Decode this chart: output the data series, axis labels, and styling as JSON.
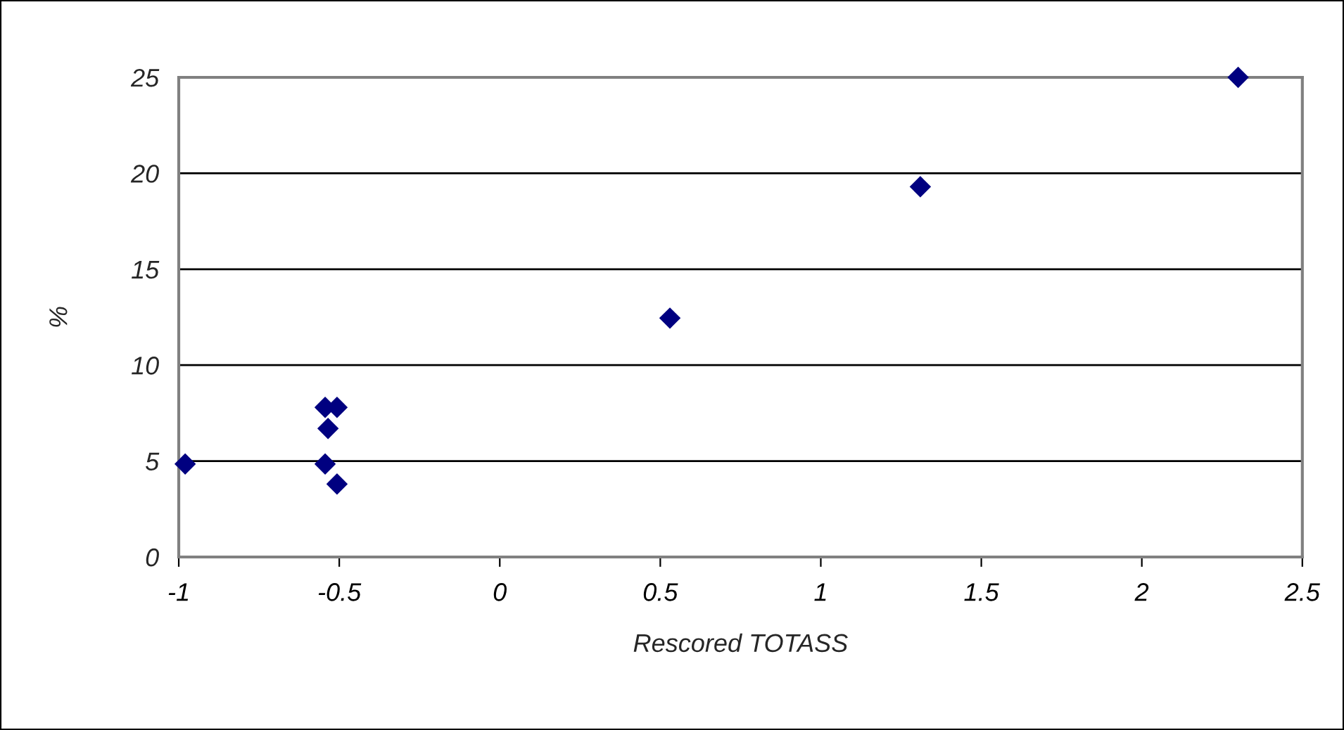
{
  "chart_data": {
    "type": "scatter",
    "xlabel": "Rescored TOTASS",
    "ylabel": "%",
    "x": [
      -0.98,
      -0.544,
      -0.507,
      -0.535,
      -0.544,
      -0.507,
      0.53,
      1.31,
      2.3
    ],
    "series": [
      {
        "color": "#000080",
        "values": [
          4.85,
          7.8,
          7.8,
          6.7,
          4.85,
          3.8,
          12.45,
          19.3,
          25.0
        ]
      }
    ],
    "xlim": [
      -1,
      2.5
    ],
    "xticks": [
      -1,
      -0.5,
      0,
      0.5,
      1,
      1.5,
      2,
      2.5
    ],
    "ylim": [
      0,
      25
    ],
    "yticks": [
      0,
      5,
      10,
      15,
      20,
      25
    ],
    "grid": "y",
    "marker": "diamond",
    "legend": false
  }
}
